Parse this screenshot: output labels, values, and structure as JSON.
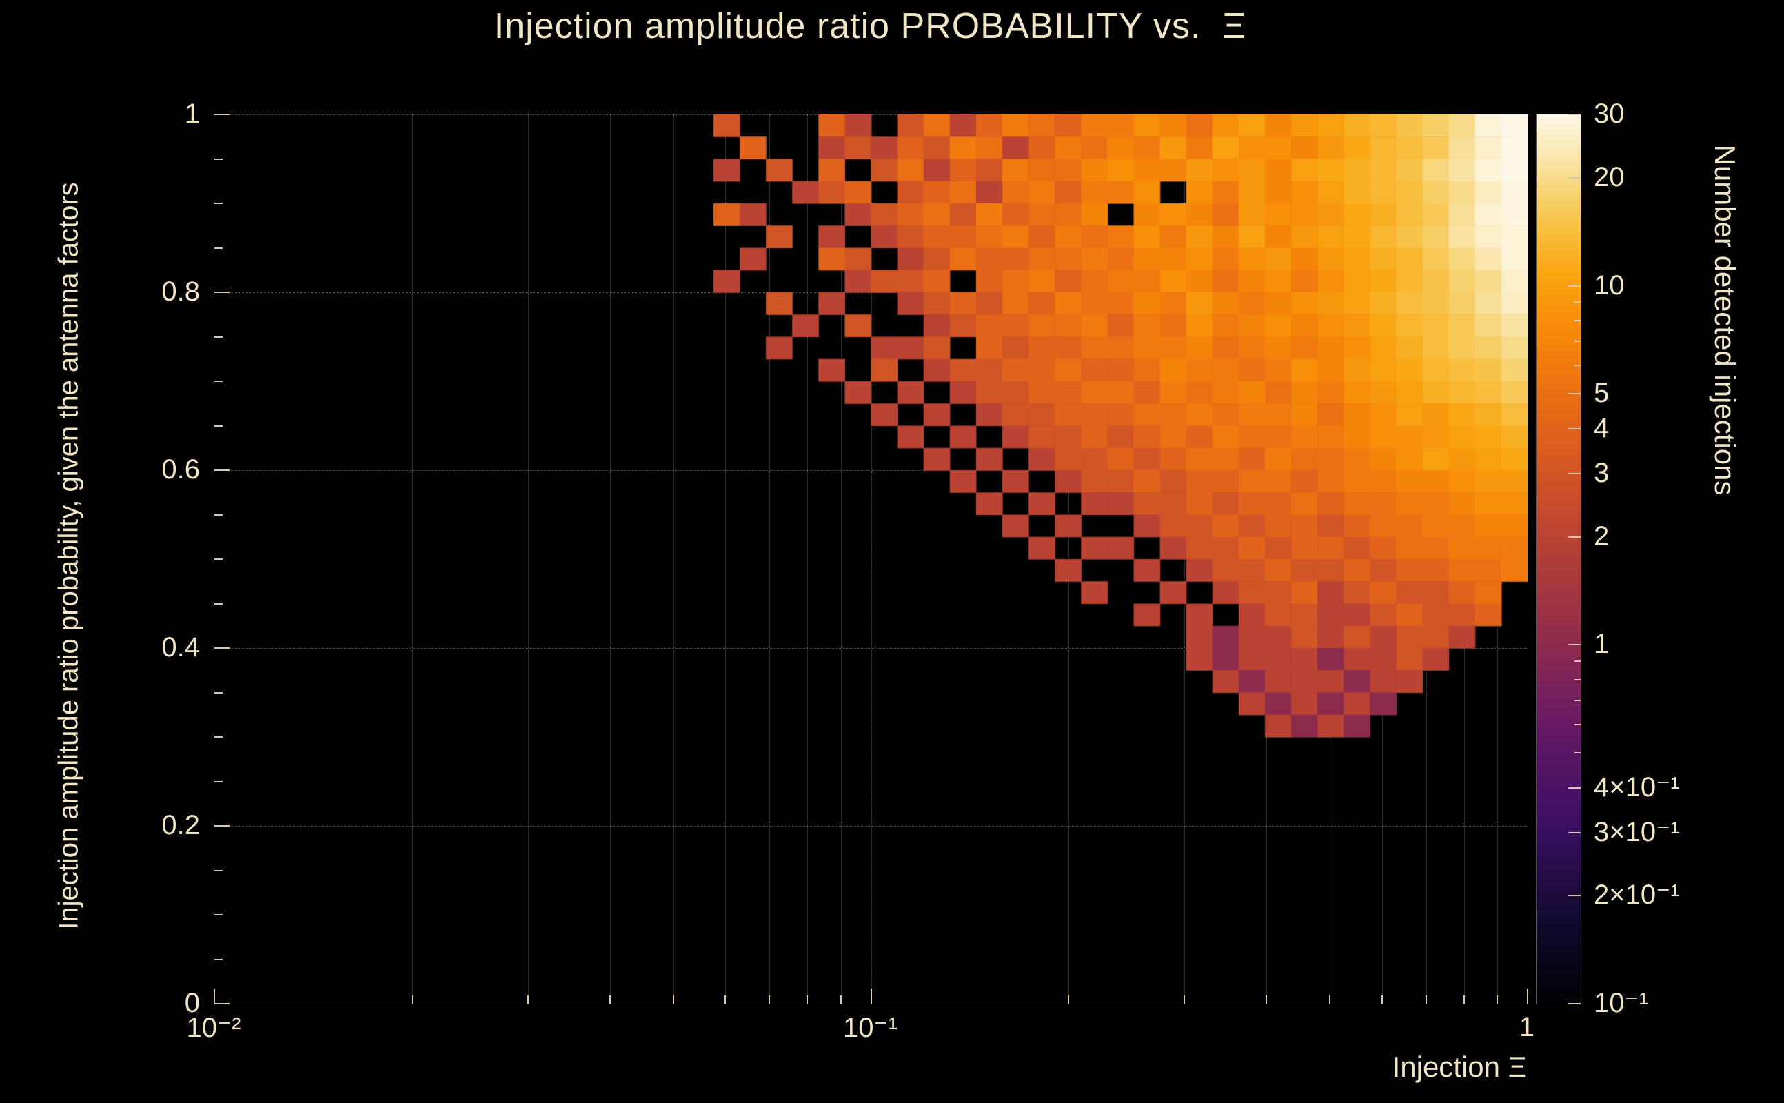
{
  "colors": {
    "background": "#000000",
    "text": "#f2e6c9",
    "frame": "#575757",
    "tick": "#d8caa8",
    "grid": "rgba(240,234,214,0.35)"
  },
  "chart_data": {
    "type": "heatmap",
    "title": "Injection amplitude ratio PROBABILITY vs.  Ξ",
    "xlabel": "Injection Ξ",
    "ylabel": "Injection amplitude ratio probability, given the antenna factors",
    "zlabel": "Number detected injections",
    "x_scale": "log",
    "x_range": [
      0.01,
      1
    ],
    "y_scale": "linear",
    "y_range": [
      0,
      1
    ],
    "grid": "dotted, log minor verticals and 0.2-step horizontals",
    "color_scale": {
      "type": "log",
      "min": 0.1,
      "max": 30
    },
    "x_ticks": [
      {
        "value": 0.01,
        "label": "10⁻²"
      },
      {
        "value": 0.1,
        "label": "10⁻¹"
      },
      {
        "value": 1,
        "label": "1"
      }
    ],
    "y_ticks": [
      {
        "value": 0,
        "label": "0"
      },
      {
        "value": 0.2,
        "label": "0.2"
      },
      {
        "value": 0.4,
        "label": "0.4"
      },
      {
        "value": 0.6,
        "label": "0.6"
      },
      {
        "value": 0.8,
        "label": "0.8"
      },
      {
        "value": 1,
        "label": "1"
      }
    ],
    "colorbar_ticks": [
      {
        "value": 30,
        "label": "30"
      },
      {
        "value": 20,
        "label": "20"
      },
      {
        "value": 10,
        "label": "10"
      },
      {
        "value": 5,
        "label": "5"
      },
      {
        "value": 4,
        "label": "4"
      },
      {
        "value": 3,
        "label": "3"
      },
      {
        "value": 2,
        "label": "2"
      },
      {
        "value": 1,
        "label": "1"
      },
      {
        "value": 0.4,
        "label": "4×10⁻¹"
      },
      {
        "value": 0.3,
        "label": "3×10⁻¹"
      },
      {
        "value": 0.2,
        "label": "2×10⁻¹"
      },
      {
        "value": 0.1,
        "label": "10⁻¹"
      }
    ],
    "colorbar_minor_ticks": [
      0.2,
      0.3,
      0.4,
      0.5,
      0.6,
      0.7,
      0.8,
      0.9,
      2,
      3,
      4,
      5,
      6,
      7,
      8,
      9,
      20
    ],
    "palette": [
      [
        0.0,
        "#000003"
      ],
      [
        0.1,
        "#140b33"
      ],
      [
        0.2,
        "#3b0f63"
      ],
      [
        0.3,
        "#611766"
      ],
      [
        0.35,
        "#77205c"
      ],
      [
        0.4,
        "#8c2a4e"
      ],
      [
        0.46,
        "#a23540"
      ],
      [
        0.52,
        "#b84234"
      ],
      [
        0.58,
        "#cd5128"
      ],
      [
        0.64,
        "#e0611c"
      ],
      [
        0.7,
        "#ee7410"
      ],
      [
        0.76,
        "#f78b08"
      ],
      [
        0.82,
        "#faa512"
      ],
      [
        0.87,
        "#f8bf3f"
      ],
      [
        0.92,
        "#f7d87e"
      ],
      [
        0.96,
        "#fae9b8"
      ],
      [
        1.0,
        "#fdf7e6"
      ]
    ],
    "heatmap": {
      "comment": "counts of detected injections per bin; base36 chars, 0=empty(black), 1-9 literal, a=10 ... u=30; rows listed top(y=1.0) to bottom(y=0.3)",
      "x_log10_start": -1.28,
      "x_log10_binwidth": 0.04,
      "n_cols": 32,
      "y_top": 1.0,
      "y_binheight": 0.025,
      "n_rows": 28,
      "rows": [
        "030004203524654668758a79acdfhksu",
        "00400232436524657696a8879bdeglqu",
        "02030403524365578779897abcdfjmsu",
        "000023403452564668086978acdehkpt",
        "0420002345364557078759889bceglrt",
        "000302023445646568697a79abdfhmqs",
        "0020043023544556577868979acdgjns",
        "0200002334045645668757868abdfikq",
        "0003020023435465576976789acefhlp",
        "00002030023445564658678789bdegjm",
        "00020002230434455667567678aceghk",
        "00000203023344544576656879abdefi",
        "000000202023344554656757689acdeg",
        "000000020202334445565667578a9bce",
        "00000000202023343454655667889abc",
        "0000000002020233434554655678a9ab",
        "00000000002020233434455456677899",
        "00000000000202022334344545566788",
        "00000000000020200233434434556677",
        "00000000000002022023343443455666",
        "00000000000000200202334334344556",
        "00000000000000020020233423433450",
        "00000000000000000202023322343340",
        "00000000000000000002122323233200",
        "00000000000000000002122212232000",
        "00000000000000000000212221220000",
        "00000000000000000000021212100000",
        "00000000000000000000002121000000"
      ]
    }
  }
}
